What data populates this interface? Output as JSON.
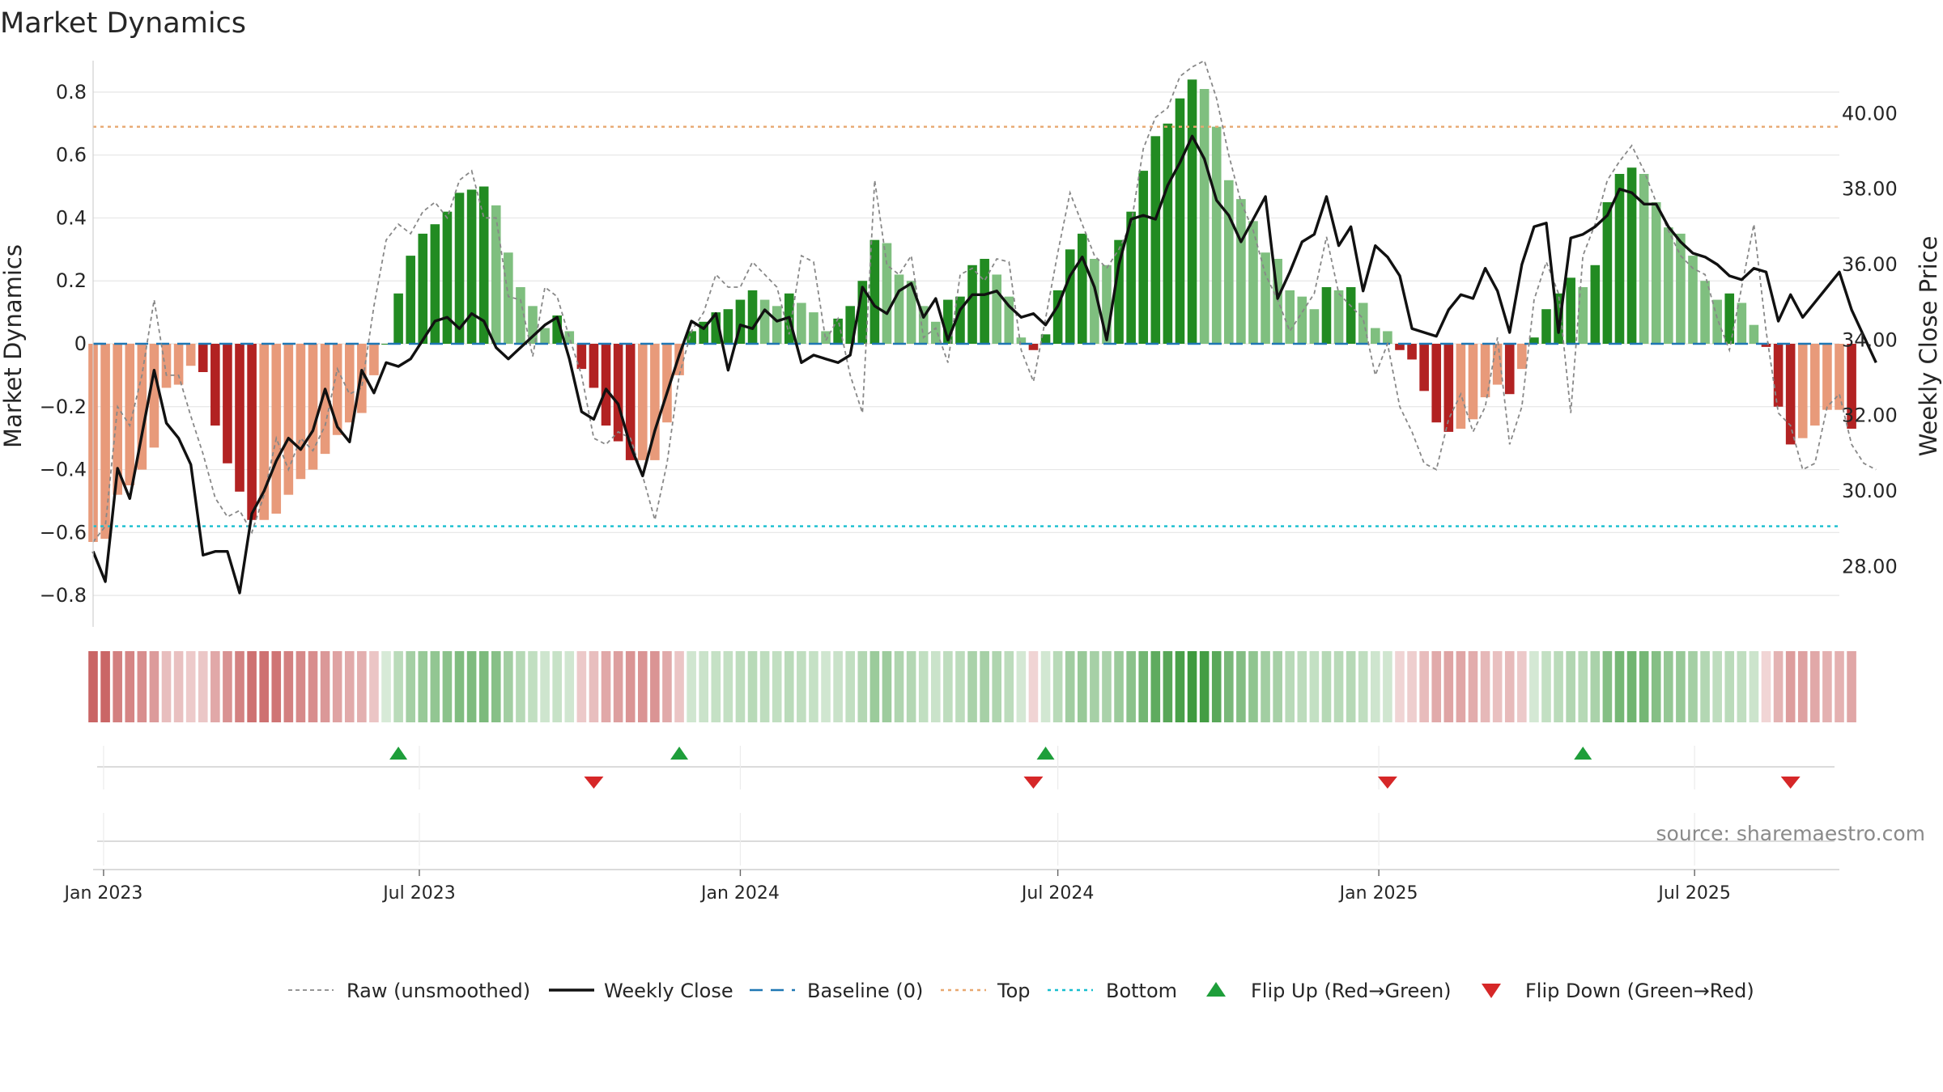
{
  "title": "Market Dynamics",
  "source": "source: sharemaestro.com",
  "colors": {
    "strong_green": "#228B22",
    "light_green": "#7FBF7F",
    "strong_red": "#B22222",
    "light_red": "#E89A7A",
    "close_line": "#111111",
    "raw_line": "#888888",
    "baseline": "#1f77b4",
    "top_line": "#E8A870",
    "bottom_line": "#17BECF",
    "flip_up": "#1E9E3A",
    "flip_down": "#D62728"
  },
  "chart_data": {
    "type": "bar",
    "title": "Market Dynamics",
    "ylabel_left": "Market Dynamics",
    "ylabel_right": "Weekly Close Price",
    "ylim_left": [
      -0.9,
      0.9
    ],
    "ylim_right": [
      26.4,
      41.4
    ],
    "yticks_left": [
      "0.8",
      "0.6",
      "0.4",
      "0.2",
      "0",
      "−0.2",
      "−0.4",
      "−0.6",
      "−0.8"
    ],
    "yticks_right": [
      "40.00",
      "38.00",
      "36.00",
      "34.00",
      "32.00",
      "30.00",
      "28.00"
    ],
    "x_range": [
      "2022-12-26",
      "2025-09-22"
    ],
    "x_ticks": [
      {
        "label": "Jan 2023",
        "date": "2023-01-01"
      },
      {
        "label": "Jul 2023",
        "date": "2023-07-01"
      },
      {
        "label": "Jan 2024",
        "date": "2024-01-01"
      },
      {
        "label": "Jul 2024",
        "date": "2024-07-01"
      },
      {
        "label": "Jan 2025",
        "date": "2025-01-01"
      },
      {
        "label": "Jul 2025",
        "date": "2025-07-01"
      }
    ],
    "start_week": "2022-12-26",
    "week_step_days": 7,
    "top_level": 0.69,
    "bottom_level": -0.58,
    "baseline_level": 0,
    "grid": true,
    "legend_placement": "bottom-center",
    "series": [
      {
        "name": "Market Dynamics",
        "values": [
          -0.63,
          -0.62,
          -0.48,
          -0.45,
          -0.4,
          -0.33,
          -0.14,
          -0.13,
          -0.07,
          -0.09,
          -0.26,
          -0.38,
          -0.47,
          -0.56,
          -0.56,
          -0.54,
          -0.48,
          -0.43,
          -0.4,
          -0.35,
          -0.29,
          -0.25,
          -0.22,
          -0.1,
          0.0,
          0.16,
          0.28,
          0.35,
          0.38,
          0.42,
          0.48,
          0.49,
          0.5,
          0.44,
          0.29,
          0.18,
          0.12,
          0.05,
          0.09,
          0.04,
          -0.08,
          -0.14,
          -0.26,
          -0.31,
          -0.37,
          -0.37,
          -0.37,
          -0.25,
          -0.1,
          0.04,
          0.07,
          0.1,
          0.11,
          0.14,
          0.17,
          0.14,
          0.12,
          0.16,
          0.13,
          0.1,
          0.04,
          0.08,
          0.12,
          0.2,
          0.33,
          0.32,
          0.22,
          0.2,
          0.12,
          0.07,
          0.14,
          0.15,
          0.25,
          0.27,
          0.22,
          0.15,
          0.02,
          -0.02,
          0.03,
          0.17,
          0.3,
          0.35,
          0.27,
          0.25,
          0.33,
          0.42,
          0.55,
          0.66,
          0.7,
          0.78,
          0.84,
          0.81,
          0.69,
          0.52,
          0.46,
          0.39,
          0.29,
          0.27,
          0.17,
          0.15,
          0.11,
          0.18,
          0.17,
          0.18,
          0.13,
          0.05,
          0.04,
          -0.02,
          -0.05,
          -0.15,
          -0.25,
          -0.28,
          -0.27,
          -0.24,
          -0.17,
          -0.13,
          -0.16,
          -0.08,
          0.02,
          0.11,
          0.16,
          0.21,
          0.18,
          0.25,
          0.45,
          0.54,
          0.56,
          0.54,
          0.45,
          0.37,
          0.35,
          0.28,
          0.2,
          0.14,
          0.16,
          0.13,
          0.06,
          -0.01,
          -0.2,
          -0.32,
          -0.3,
          -0.26,
          -0.21,
          -0.21,
          -0.27
        ]
      },
      {
        "name": "Weekly Close",
        "values": [
          28.4,
          27.6,
          30.6,
          29.8,
          31.5,
          33.2,
          31.8,
          31.4,
          30.7,
          28.3,
          28.4,
          28.4,
          27.3,
          29.4,
          30.0,
          30.8,
          31.4,
          31.1,
          31.6,
          32.7,
          31.7,
          31.3,
          33.2,
          32.6,
          33.4,
          33.3,
          33.5,
          34.0,
          34.5,
          34.6,
          34.3,
          34.7,
          34.5,
          33.8,
          33.5,
          33.8,
          34.1,
          34.4,
          34.6,
          33.5,
          32.1,
          31.9,
          32.7,
          32.3,
          31.2,
          30.4,
          31.6,
          32.6,
          33.6,
          34.5,
          34.3,
          34.7,
          33.2,
          34.4,
          34.3,
          34.8,
          34.5,
          34.6,
          33.4,
          33.6,
          33.5,
          33.4,
          33.6,
          35.4,
          34.9,
          34.7,
          35.3,
          35.5,
          34.6,
          35.1,
          34.0,
          34.8,
          35.2,
          35.2,
          35.3,
          34.9,
          34.6,
          34.7,
          34.4,
          34.9,
          35.7,
          36.2,
          35.4,
          34.0,
          36.0,
          37.2,
          37.3,
          37.2,
          38.1,
          38.7,
          39.4,
          38.8,
          37.7,
          37.3,
          36.6,
          37.2,
          37.8,
          35.1,
          35.8,
          36.6,
          36.8,
          37.8,
          36.5,
          37.0,
          35.3,
          36.5,
          36.2,
          35.7,
          34.3,
          34.2,
          34.1,
          34.8,
          35.2,
          35.1,
          35.9,
          35.3,
          34.2,
          36.0,
          37.0,
          37.1,
          34.2,
          36.7,
          36.8,
          37.0,
          37.3,
          38.0,
          37.9,
          37.6,
          37.6,
          37.0,
          36.6,
          36.3,
          36.2,
          36.0,
          35.7,
          35.6,
          35.9,
          35.8,
          34.5,
          35.2,
          34.6,
          35.0,
          35.4,
          35.8,
          34.8,
          34.1,
          33.4
        ]
      },
      {
        "name": "Raw (unsmoothed)",
        "values": [
          -0.63,
          -0.58,
          -0.2,
          -0.26,
          -0.1,
          0.14,
          -0.1,
          -0.1,
          -0.23,
          -0.35,
          -0.49,
          -0.55,
          -0.53,
          -0.6,
          -0.48,
          -0.3,
          -0.4,
          -0.3,
          -0.34,
          -0.26,
          -0.08,
          -0.16,
          -0.14,
          0.12,
          0.33,
          0.38,
          0.35,
          0.42,
          0.45,
          0.4,
          0.52,
          0.55,
          0.4,
          0.4,
          0.15,
          0.14,
          -0.04,
          0.18,
          0.15,
          0.02,
          -0.1,
          -0.3,
          -0.32,
          -0.28,
          -0.3,
          -0.42,
          -0.56,
          -0.38,
          -0.1,
          0.04,
          0.1,
          0.22,
          0.18,
          0.18,
          0.26,
          0.22,
          0.18,
          0.03,
          0.28,
          0.26,
          0.01,
          0.08,
          -0.1,
          -0.22,
          0.52,
          0.25,
          0.22,
          0.28,
          0.02,
          0.05,
          -0.06,
          0.22,
          0.24,
          0.2,
          0.27,
          0.26,
          -0.02,
          -0.12,
          0.08,
          0.29,
          0.48,
          0.38,
          0.28,
          0.24,
          0.3,
          0.38,
          0.62,
          0.72,
          0.75,
          0.85,
          0.88,
          0.9,
          0.78,
          0.6,
          0.45,
          0.36,
          0.22,
          0.14,
          0.04,
          0.1,
          0.16,
          0.34,
          0.16,
          0.12,
          0.08,
          -0.1,
          0.0,
          -0.2,
          -0.28,
          -0.38,
          -0.4,
          -0.24,
          -0.16,
          -0.28,
          -0.2,
          0.02,
          -0.32,
          -0.2,
          0.14,
          0.26,
          0.16,
          -0.22,
          0.28,
          0.38,
          0.52,
          0.58,
          0.63,
          0.55,
          0.45,
          0.36,
          0.28,
          0.24,
          0.22,
          0.08,
          -0.02,
          0.18,
          0.38,
          0.04,
          -0.22,
          -0.26,
          -0.4,
          -0.38,
          -0.2,
          -0.16,
          -0.32,
          -0.38,
          -0.4
        ]
      }
    ],
    "regime_strip_note": "per-week color strip under main chart",
    "flips": [
      {
        "name": "Flip Up (Red→Green)",
        "dates": [
          "2023-06-19",
          "2023-11-27",
          "2024-06-24",
          "2025-04-28"
        ]
      },
      {
        "name": "Flip Down (Green→Red)",
        "dates": [
          "2023-10-09",
          "2024-06-17",
          "2025-01-06",
          "2025-08-25"
        ]
      }
    ],
    "legend": [
      {
        "label": "Raw (unsmoothed)",
        "style": "dotted-gray"
      },
      {
        "label": "Weekly Close",
        "style": "solid-black"
      },
      {
        "label": "Baseline (0)",
        "style": "dashed-blue"
      },
      {
        "label": "Top",
        "style": "dotted-orange"
      },
      {
        "label": "Bottom",
        "style": "dotted-cyan"
      },
      {
        "label": "Flip Up (Red→Green)",
        "style": "triangle-up-green"
      },
      {
        "label": "Flip Down (Green→Red)",
        "style": "triangle-down-red"
      }
    ]
  }
}
